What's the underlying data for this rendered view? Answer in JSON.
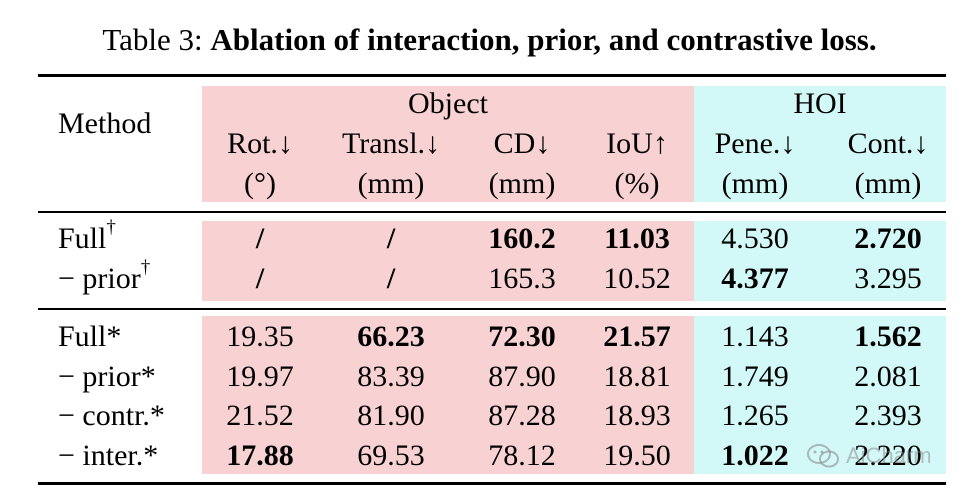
{
  "caption": {
    "label": "Table 3:",
    "title": "Ablation of interaction, prior, and contrastive loss."
  },
  "header": {
    "method": "Method",
    "group_object": "Object",
    "group_hoi": "HOI",
    "columns": [
      {
        "name": "Rot.↓",
        "unit": "(°)"
      },
      {
        "name": "Transl.↓",
        "unit": "(mm)"
      },
      {
        "name": "CD↓",
        "unit": "(mm)"
      },
      {
        "name": "IoU↑",
        "unit": "(%)"
      },
      {
        "name": "Pene.↓",
        "unit": "(mm)"
      },
      {
        "name": "Cont.↓",
        "unit": "(mm)"
      }
    ]
  },
  "rows": [
    {
      "method": "Full",
      "mark": "†",
      "cells": [
        {
          "v": "/",
          "bold": true
        },
        {
          "v": "/",
          "bold": true
        },
        {
          "v": "160.2",
          "bold": true
        },
        {
          "v": "11.03",
          "bold": true
        },
        {
          "v": "4.530",
          "bold": false
        },
        {
          "v": "2.720",
          "bold": true
        }
      ]
    },
    {
      "method": "− prior",
      "mark": "†",
      "cells": [
        {
          "v": "/",
          "bold": true
        },
        {
          "v": "/",
          "bold": true
        },
        {
          "v": "165.3",
          "bold": false
        },
        {
          "v": "10.52",
          "bold": false
        },
        {
          "v": "4.377",
          "bold": true
        },
        {
          "v": "3.295",
          "bold": false
        }
      ]
    },
    {
      "method": "Full*",
      "mark": "",
      "cells": [
        {
          "v": "19.35",
          "bold": false
        },
        {
          "v": "66.23",
          "bold": true
        },
        {
          "v": "72.30",
          "bold": true
        },
        {
          "v": "21.57",
          "bold": true
        },
        {
          "v": "1.143",
          "bold": false
        },
        {
          "v": "1.562",
          "bold": true
        }
      ]
    },
    {
      "method": "− prior*",
      "mark": "",
      "cells": [
        {
          "v": "19.97",
          "bold": false
        },
        {
          "v": "83.39",
          "bold": false
        },
        {
          "v": "87.90",
          "bold": false
        },
        {
          "v": "18.81",
          "bold": false
        },
        {
          "v": "1.749",
          "bold": false
        },
        {
          "v": "2.081",
          "bold": false
        }
      ]
    },
    {
      "method": "− contr.*",
      "mark": "",
      "cells": [
        {
          "v": "21.52",
          "bold": false
        },
        {
          "v": "81.90",
          "bold": false
        },
        {
          "v": "87.28",
          "bold": false
        },
        {
          "v": "18.93",
          "bold": false
        },
        {
          "v": "1.265",
          "bold": false
        },
        {
          "v": "2.393",
          "bold": false
        }
      ]
    },
    {
      "method": "− inter.*",
      "mark": "",
      "cells": [
        {
          "v": "17.88",
          "bold": true
        },
        {
          "v": "69.53",
          "bold": false
        },
        {
          "v": "78.12",
          "bold": false
        },
        {
          "v": "19.50",
          "bold": false
        },
        {
          "v": "1.022",
          "bold": true
        },
        {
          "v": "2.220",
          "bold": false
        }
      ]
    }
  ],
  "watermark": {
    "text": "AiCharm",
    "icon": "wechat-icon"
  },
  "colors": {
    "object_band": "#f8d2d2",
    "hoi_band": "#d2f8f8"
  }
}
